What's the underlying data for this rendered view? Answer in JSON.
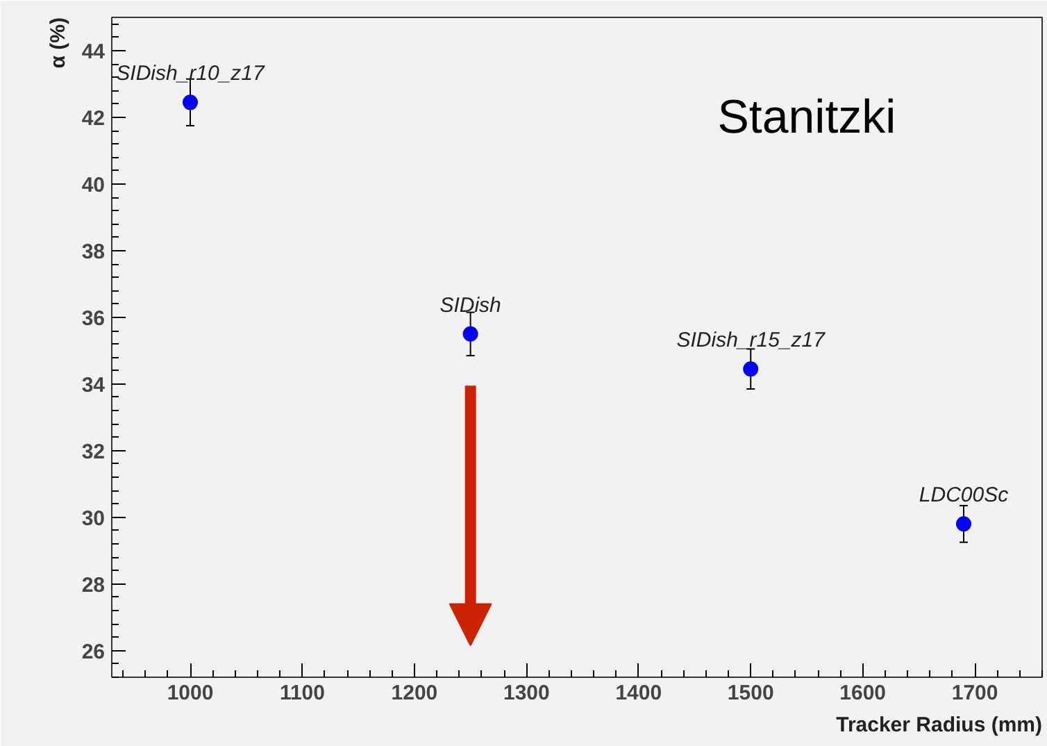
{
  "chart_data": {
    "type": "scatter",
    "xlabel": "Tracker Radius (mm)",
    "ylabel": "α (%)",
    "x": [
      1000,
      1250,
      1500,
      1690
    ],
    "values": [
      42.45,
      35.5,
      34.45,
      29.8
    ],
    "errors": [
      0.7,
      0.65,
      0.6,
      0.55
    ],
    "color": "#0000ff",
    "marker": "circle",
    "grid": false,
    "xlim": [
      930,
      1760
    ],
    "xticks": [
      1000,
      1100,
      1200,
      1300,
      1400,
      1500,
      1600,
      1700
    ],
    "ylim": [
      25.2,
      45
    ],
    "yticks": [
      26,
      28,
      30,
      32,
      34,
      36,
      38,
      40,
      42,
      44
    ],
    "annotations": [
      {
        "text": "SIDish_r10_z17",
        "x": 1000,
        "y": 42.45
      },
      {
        "text": "SIDish",
        "x": 1250,
        "y": 35.5
      },
      {
        "text": "SIDish_r15_z17",
        "x": 1500,
        "y": 34.45
      },
      {
        "text": "LDC00Sc",
        "x": 1690,
        "y": 29.8
      },
      "Stanitzki"
    ]
  }
}
